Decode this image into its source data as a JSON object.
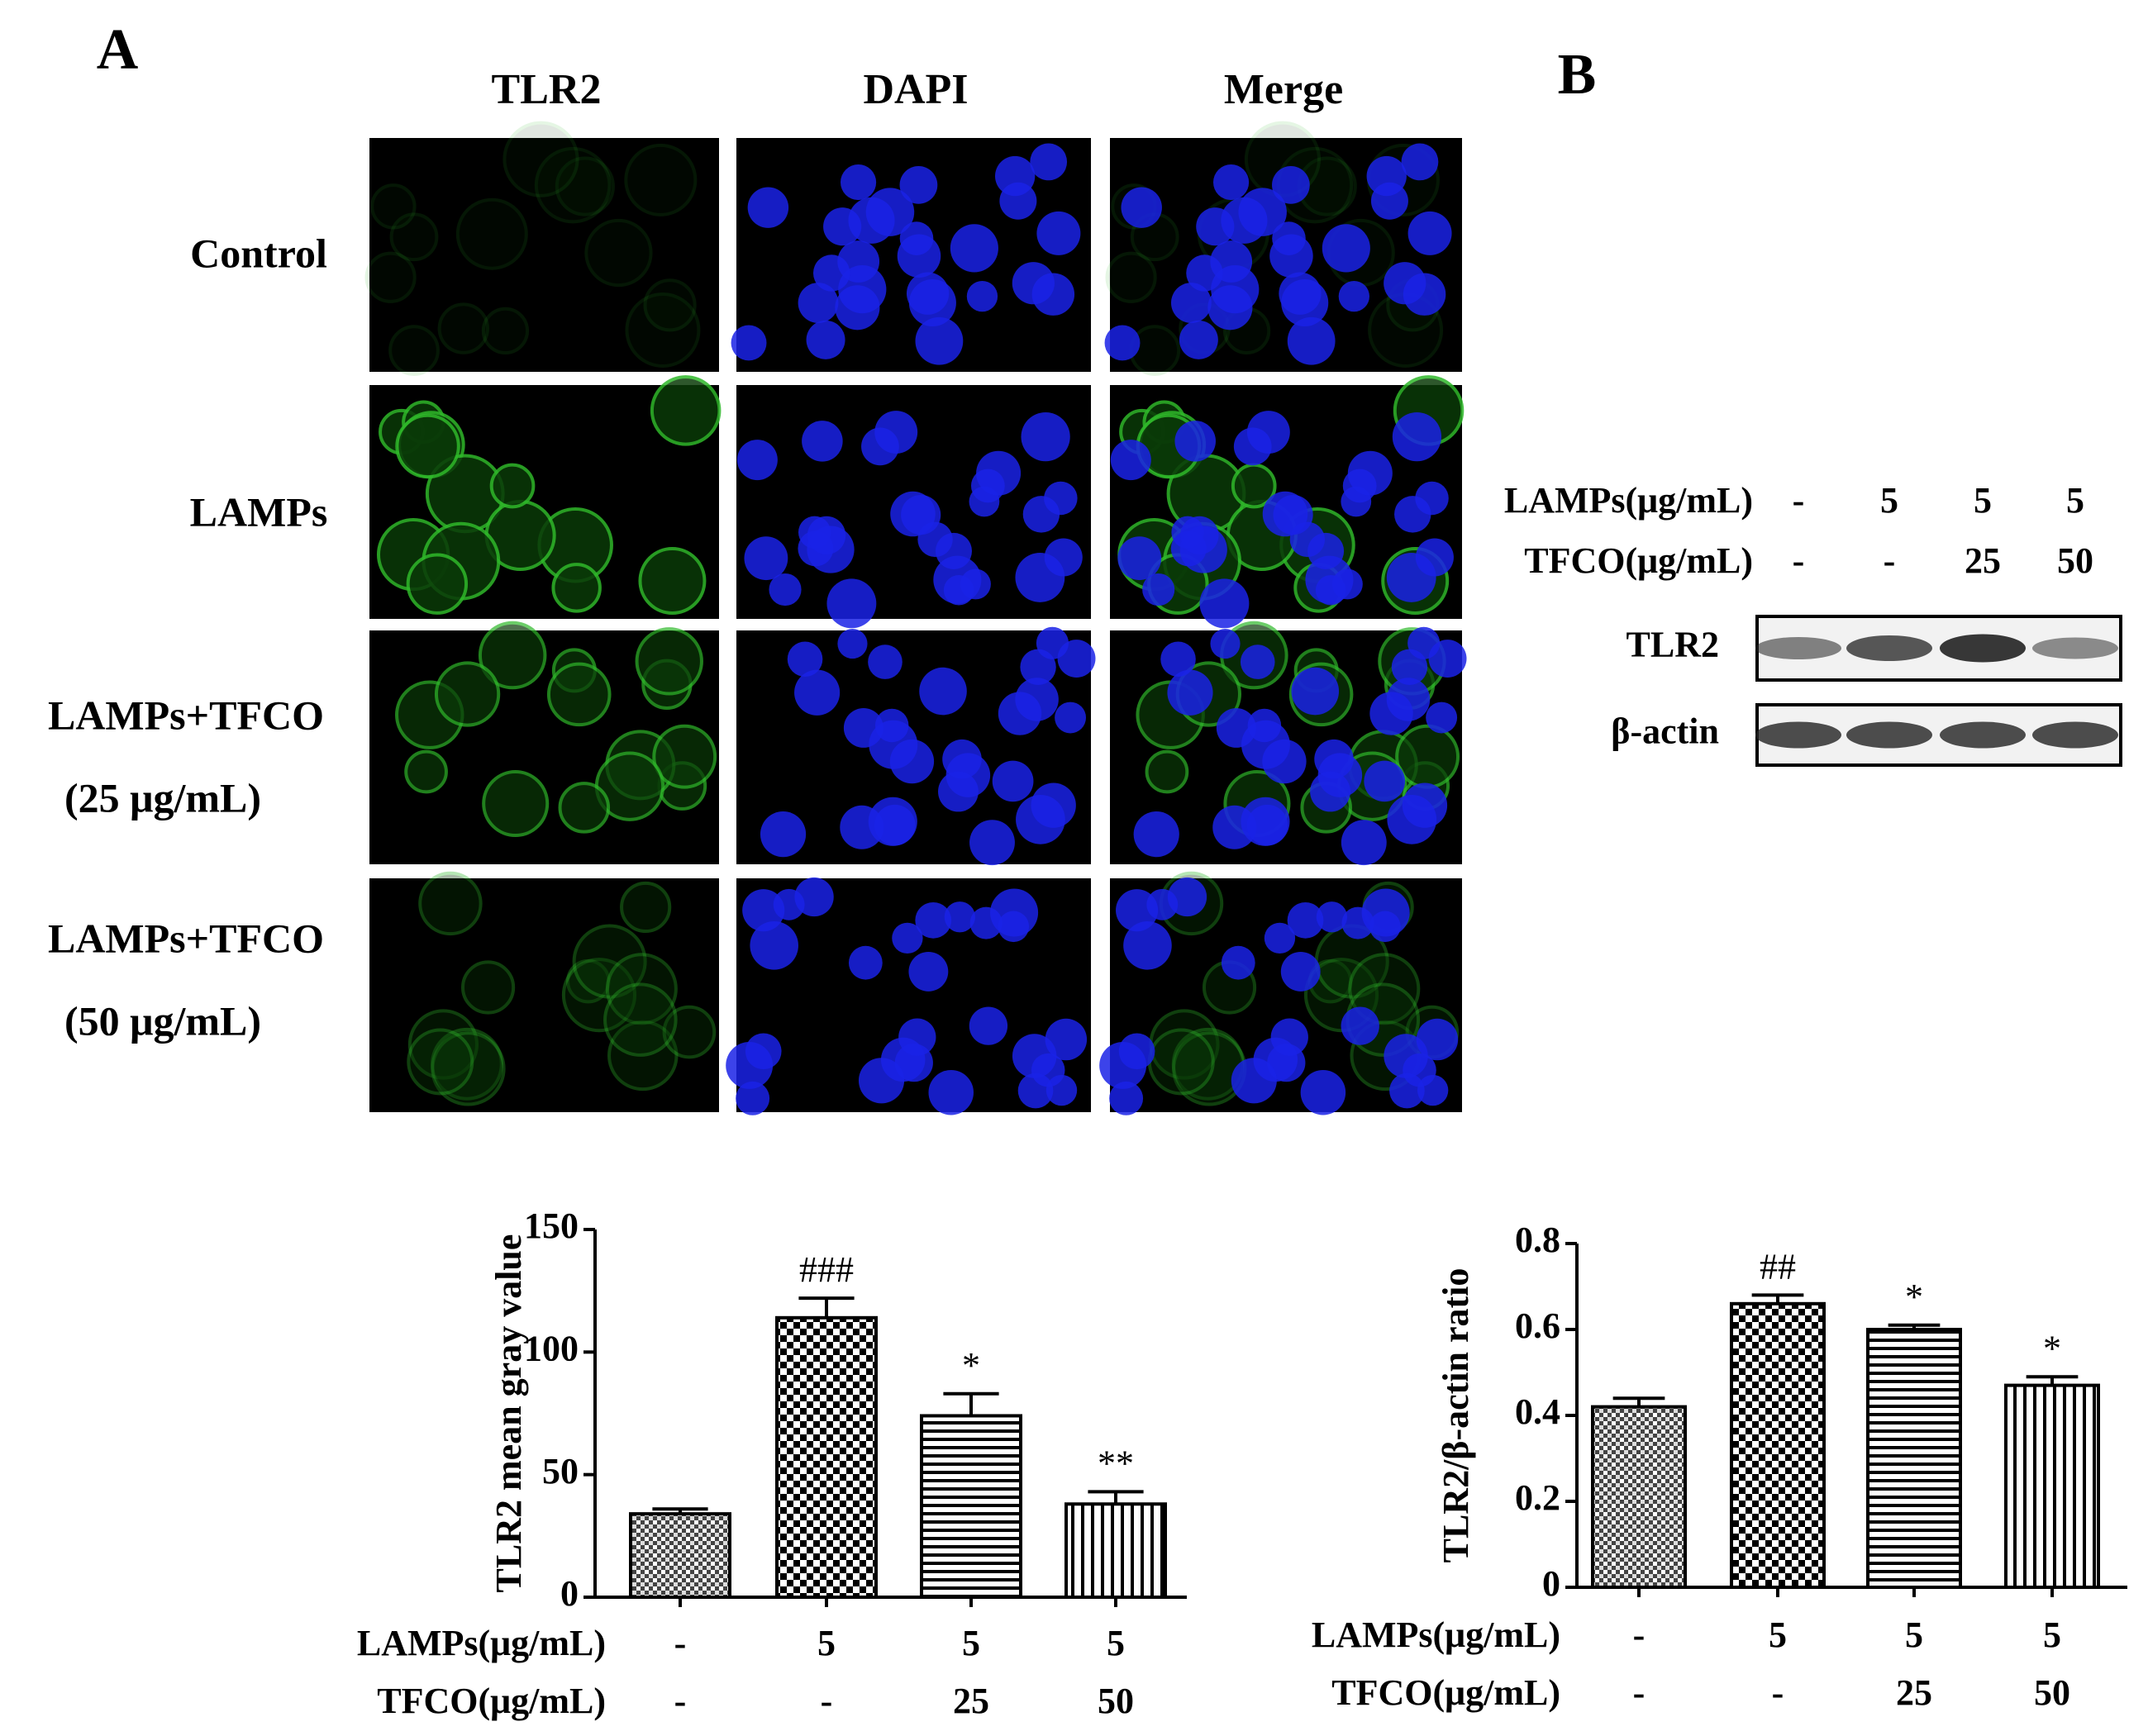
{
  "panels": {
    "a_label": "A",
    "b_label": "B"
  },
  "microscopy": {
    "columns": [
      "TLR2",
      "DAPI",
      "Merge"
    ],
    "rows": [
      [
        "Control"
      ],
      [
        "LAMPs"
      ],
      [
        "LAMPs+TFCO",
        "(25 μg/mL)"
      ],
      [
        "LAMPs+TFCO",
        "(50 μg/mL)"
      ]
    ]
  },
  "blot": {
    "header_rows": [
      {
        "label": "LAMPs(μg/mL)",
        "values": [
          "-",
          "5",
          "5",
          "5"
        ]
      },
      {
        "label": "TFCO(μg/mL)",
        "values": [
          "-",
          "-",
          "25",
          "50"
        ]
      }
    ],
    "bands": [
      "TLR2",
      "β-actin"
    ]
  },
  "chart_data": [
    {
      "type": "bar",
      "ylabel": "TLR2 mean gray value",
      "categories": [
        null,
        null,
        null,
        null
      ],
      "values": [
        34,
        114,
        74,
        38
      ],
      "errors": [
        2,
        8,
        9,
        5
      ],
      "annotations": [
        null,
        "###",
        "*",
        "**"
      ],
      "ylim": [
        0,
        150
      ],
      "yticks": [
        0,
        50,
        100,
        150
      ],
      "treatments": [
        {
          "label": "LAMPs(μg/mL)",
          "values": [
            "-",
            "5",
            "5",
            "5"
          ]
        },
        {
          "label": "TFCO(μg/mL)",
          "values": [
            "-",
            "-",
            "25",
            "50"
          ]
        }
      ]
    },
    {
      "type": "bar",
      "ylabel": "TLR2/β-actin ratio",
      "categories": [
        null,
        null,
        null,
        null
      ],
      "values": [
        0.42,
        0.66,
        0.6,
        0.47
      ],
      "errors": [
        0.02,
        0.02,
        0.01,
        0.02
      ],
      "annotations": [
        null,
        "##",
        "*",
        "*"
      ],
      "ylim": [
        0,
        0.8
      ],
      "yticks": [
        0,
        0.2,
        0.4,
        0.6,
        0.8
      ],
      "treatments": [
        {
          "label": "LAMPs(μg/mL)",
          "values": [
            "-",
            "5",
            "5",
            "5"
          ]
        },
        {
          "label": "TFCO(μg/mL)",
          "values": [
            "-",
            "-",
            "25",
            "50"
          ]
        }
      ]
    }
  ]
}
